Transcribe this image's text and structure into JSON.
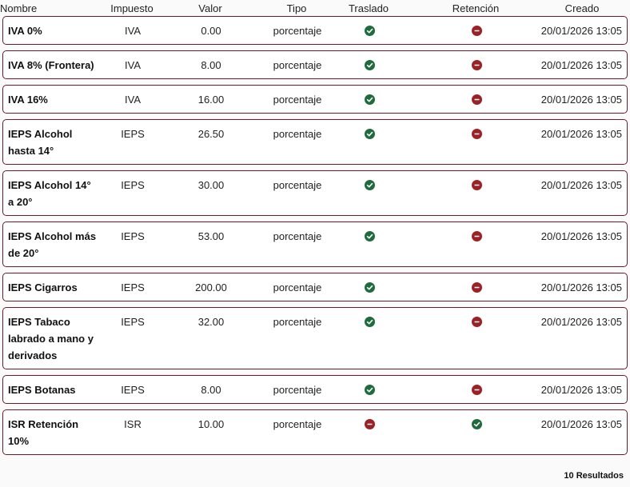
{
  "header": [
    "Nombre",
    "Impuesto",
    "Valor",
    "Tipo",
    "Traslado",
    "Retención",
    "Creado"
  ],
  "rows": [
    {
      "nombre": "IVA 0%",
      "impuesto": "IVA",
      "valor": "0.00",
      "tipo": "porcentaje",
      "traslado": true,
      "retencion": false,
      "creado": "20/01/2026 13:05"
    },
    {
      "nombre": "IVA 8% (Frontera)",
      "impuesto": "IVA",
      "valor": "8.00",
      "tipo": "porcentaje",
      "traslado": true,
      "retencion": false,
      "creado": "20/01/2026 13:05"
    },
    {
      "nombre": "IVA 16%",
      "impuesto": "IVA",
      "valor": "16.00",
      "tipo": "porcentaje",
      "traslado": true,
      "retencion": false,
      "creado": "20/01/2026 13:05"
    },
    {
      "nombre": "IEPS Alcohol hasta 14°",
      "impuesto": "IEPS",
      "valor": "26.50",
      "tipo": "porcentaje",
      "traslado": true,
      "retencion": false,
      "creado": "20/01/2026 13:05"
    },
    {
      "nombre": "IEPS Alcohol 14° a 20°",
      "impuesto": "IEPS",
      "valor": "30.00",
      "tipo": "porcentaje",
      "traslado": true,
      "retencion": false,
      "creado": "20/01/2026 13:05"
    },
    {
      "nombre": "IEPS Alcohol más de 20°",
      "impuesto": "IEPS",
      "valor": "53.00",
      "tipo": "porcentaje",
      "traslado": true,
      "retencion": false,
      "creado": "20/01/2026 13:05"
    },
    {
      "nombre": "IEPS Cigarros",
      "impuesto": "IEPS",
      "valor": "200.00",
      "tipo": "porcentaje",
      "traslado": true,
      "retencion": false,
      "creado": "20/01/2026 13:05"
    },
    {
      "nombre": "IEPS Tabaco labrado a mano y derivados",
      "impuesto": "IEPS",
      "valor": "32.00",
      "tipo": "porcentaje",
      "traslado": true,
      "retencion": false,
      "creado": "20/01/2026 13:05"
    },
    {
      "nombre": "IEPS Botanas",
      "impuesto": "IEPS",
      "valor": "8.00",
      "tipo": "porcentaje",
      "traslado": true,
      "retencion": false,
      "creado": "20/01/2026 13:05"
    },
    {
      "nombre": "ISR Retención 10%",
      "impuesto": "ISR",
      "valor": "10.00",
      "tipo": "porcentaje",
      "traslado": false,
      "retencion": true,
      "creado": "20/01/2026 13:05"
    }
  ],
  "footer": "10 Resultados"
}
